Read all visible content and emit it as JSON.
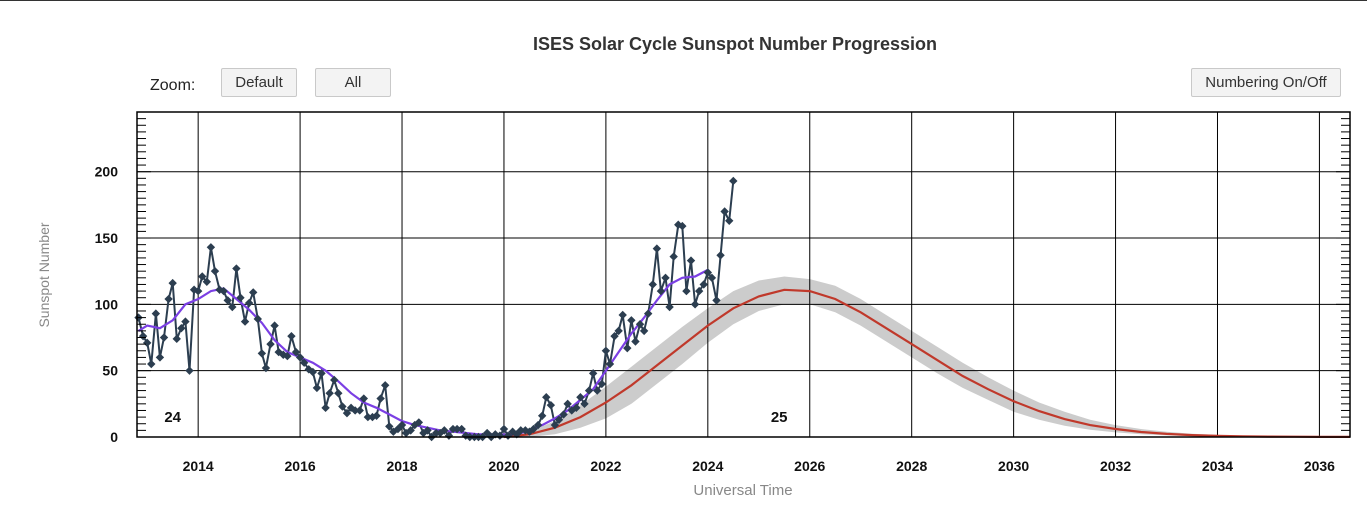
{
  "chart_data": {
    "type": "line",
    "title": "ISES Solar Cycle Sunspot Number Progression",
    "xlabel": "Universal Time",
    "ylabel": "Sunspot Number",
    "xlim": [
      2012.8,
      2036.6
    ],
    "ylim": [
      0,
      245
    ],
    "x_ticks": [
      "2014",
      "2016",
      "2018",
      "2020",
      "2022",
      "2024",
      "2026",
      "2028",
      "2030",
      "2032",
      "2034",
      "2036"
    ],
    "y_ticks": [
      "0",
      "50",
      "100",
      "150",
      "200"
    ],
    "grid": true,
    "cycle_labels": [
      {
        "text": "24",
        "x": 2013.5,
        "y": 12
      },
      {
        "text": "25",
        "x": 2025.4,
        "y": 12
      }
    ],
    "series": [
      {
        "color": "#2c3e50",
        "style": "line-markers",
        "x": [
          2012.83,
          2012.92,
          2013.0,
          2013.08,
          2013.17,
          2013.25,
          2013.33,
          2013.42,
          2013.5,
          2013.58,
          2013.67,
          2013.75,
          2013.83,
          2013.92,
          2014.0,
          2014.08,
          2014.17,
          2014.25,
          2014.33,
          2014.42,
          2014.5,
          2014.58,
          2014.67,
          2014.75,
          2014.83,
          2014.92,
          2015.0,
          2015.08,
          2015.17,
          2015.25,
          2015.33,
          2015.42,
          2015.5,
          2015.58,
          2015.67,
          2015.75,
          2015.83,
          2015.92,
          2016.0,
          2016.08,
          2016.17,
          2016.25,
          2016.33,
          2016.42,
          2016.5,
          2016.58,
          2016.67,
          2016.75,
          2016.83,
          2016.92,
          2017.0,
          2017.08,
          2017.17,
          2017.25,
          2017.33,
          2017.42,
          2017.5,
          2017.58,
          2017.67,
          2017.75,
          2017.83,
          2017.92,
          2018.0,
          2018.08,
          2018.17,
          2018.25,
          2018.33,
          2018.42,
          2018.5,
          2018.58,
          2018.67,
          2018.75,
          2018.83,
          2018.92,
          2019.0,
          2019.08,
          2019.17,
          2019.25,
          2019.33,
          2019.42,
          2019.5,
          2019.58,
          2019.67,
          2019.75,
          2019.83,
          2019.92,
          2020.0,
          2020.08,
          2020.17,
          2020.25,
          2020.33,
          2020.42,
          2020.5,
          2020.58,
          2020.67,
          2020.75,
          2020.83,
          2020.92,
          2021.0,
          2021.08,
          2021.17,
          2021.25,
          2021.33,
          2021.42,
          2021.5,
          2021.58,
          2021.67,
          2021.75,
          2021.83,
          2021.92,
          2022.0,
          2022.08,
          2022.17,
          2022.25,
          2022.33,
          2022.42,
          2022.5,
          2022.58,
          2022.67,
          2022.75,
          2022.83,
          2022.92,
          2023.0,
          2023.08,
          2023.17,
          2023.25,
          2023.33,
          2023.42,
          2023.5,
          2023.58,
          2023.67,
          2023.75,
          2023.83,
          2023.92,
          2024.0,
          2024.08,
          2024.17,
          2024.25,
          2024.33,
          2024.42,
          2024.5
        ],
        "values": [
          90,
          76,
          71,
          55,
          93,
          60,
          75,
          104,
          116,
          74,
          82,
          87,
          50,
          111,
          110,
          121,
          117,
          143,
          125,
          111,
          110,
          103,
          98,
          127,
          105,
          87,
          101,
          109,
          89,
          63,
          52,
          70,
          84,
          64,
          62,
          61,
          76,
          64,
          60,
          56,
          51,
          49,
          37,
          48,
          22,
          33,
          43,
          33,
          23,
          18,
          22,
          20,
          20,
          29,
          15,
          15,
          16,
          29,
          39,
          8,
          4,
          6,
          9,
          3,
          5,
          9,
          11,
          3,
          5,
          0,
          3,
          3,
          5,
          1,
          6,
          6,
          6,
          1,
          0,
          0,
          0,
          0,
          3,
          0,
          2,
          1,
          6,
          1,
          4,
          2,
          5,
          5,
          4,
          6,
          9,
          16,
          30,
          24,
          9,
          13,
          17,
          25,
          20,
          22,
          30,
          25,
          35,
          48,
          35,
          40,
          65,
          55,
          76,
          80,
          92,
          67,
          88,
          72,
          85,
          80,
          93,
          115,
          142,
          110,
          120,
          98,
          136,
          160,
          159,
          110,
          133,
          100,
          110,
          115,
          124,
          120,
          103,
          137,
          170,
          163,
          193
        ]
      },
      {
        "color": "#7b3fe4",
        "style": "smoothed",
        "x": [
          2012.83,
          2013.0,
          2013.25,
          2013.5,
          2013.75,
          2014.0,
          2014.25,
          2014.5,
          2014.75,
          2015.0,
          2015.25,
          2015.5,
          2015.75,
          2016.0,
          2016.25,
          2016.5,
          2016.75,
          2017.0,
          2017.25,
          2017.5,
          2017.75,
          2018.0,
          2018.25,
          2018.5,
          2018.75,
          2019.0,
          2019.25,
          2019.5,
          2019.75,
          2020.0,
          2020.25,
          2020.5,
          2020.75,
          2021.0,
          2021.25,
          2021.5,
          2021.75,
          2022.0,
          2022.25,
          2022.5,
          2022.75,
          2023.0,
          2023.25,
          2023.5,
          2023.75,
          2024.0
        ],
        "values": [
          80,
          84,
          82,
          88,
          100,
          104,
          110,
          112,
          104,
          96,
          86,
          73,
          64,
          60,
          56,
          50,
          42,
          33,
          26,
          22,
          17,
          12,
          9,
          7,
          5,
          4,
          3,
          2,
          2,
          1.8,
          2,
          5,
          9,
          14,
          20,
          28,
          36,
          50,
          64,
          78,
          90,
          103,
          115,
          120,
          121,
          126
        ]
      },
      {
        "color": "#c0392b",
        "style": "prediction",
        "x": [
          2020.0,
          2020.5,
          2021.0,
          2021.5,
          2022.0,
          2022.5,
          2023.0,
          2023.5,
          2024.0,
          2024.5,
          2025.0,
          2025.5,
          2026.0,
          2026.5,
          2027.0,
          2027.5,
          2028.0,
          2028.5,
          2029.0,
          2029.5,
          2030.0,
          2030.5,
          2031.0,
          2031.5,
          2032.0,
          2032.5,
          2033.0,
          2033.5,
          2034.0,
          2034.5,
          2035.0,
          2035.5,
          2036.0,
          2036.6
        ],
        "values": [
          0,
          2,
          7,
          15,
          26,
          39,
          54,
          69,
          84,
          97,
          106,
          111,
          110,
          104,
          94,
          82,
          70,
          58,
          46,
          36,
          27,
          19.5,
          13.5,
          9,
          6,
          3.8,
          2.3,
          1.4,
          0.8,
          0.5,
          0.3,
          0.2,
          0.1,
          0.1
        ],
        "band_upper": [
          0,
          4,
          12,
          24,
          38,
          53,
          68,
          83,
          97,
          110,
          118,
          121,
          119,
          114,
          104,
          92,
          80,
          68,
          56,
          45,
          35,
          26,
          19,
          13,
          9,
          6,
          4,
          2.5,
          1.6,
          1,
          0.6,
          0.4,
          0.2,
          0.2
        ],
        "band_lower": [
          0,
          0,
          2,
          7,
          14,
          25,
          40,
          55,
          71,
          85,
          95,
          100,
          100,
          94,
          84,
          72,
          60,
          48,
          37,
          28,
          19,
          13,
          8.5,
          5.5,
          3.5,
          2,
          1.2,
          0.7,
          0.4,
          0.2,
          0.1,
          0.05,
          0,
          0
        ]
      }
    ]
  },
  "controls": {
    "zoom_label": "Zoom:",
    "default_label": "Default",
    "all_label": "All",
    "numbering_label": "Numbering On/Off"
  },
  "colors": {
    "observed": "#2c3e50",
    "smoothed": "#7b3fe4",
    "prediction": "#c0392b",
    "band": "#cccccc"
  }
}
